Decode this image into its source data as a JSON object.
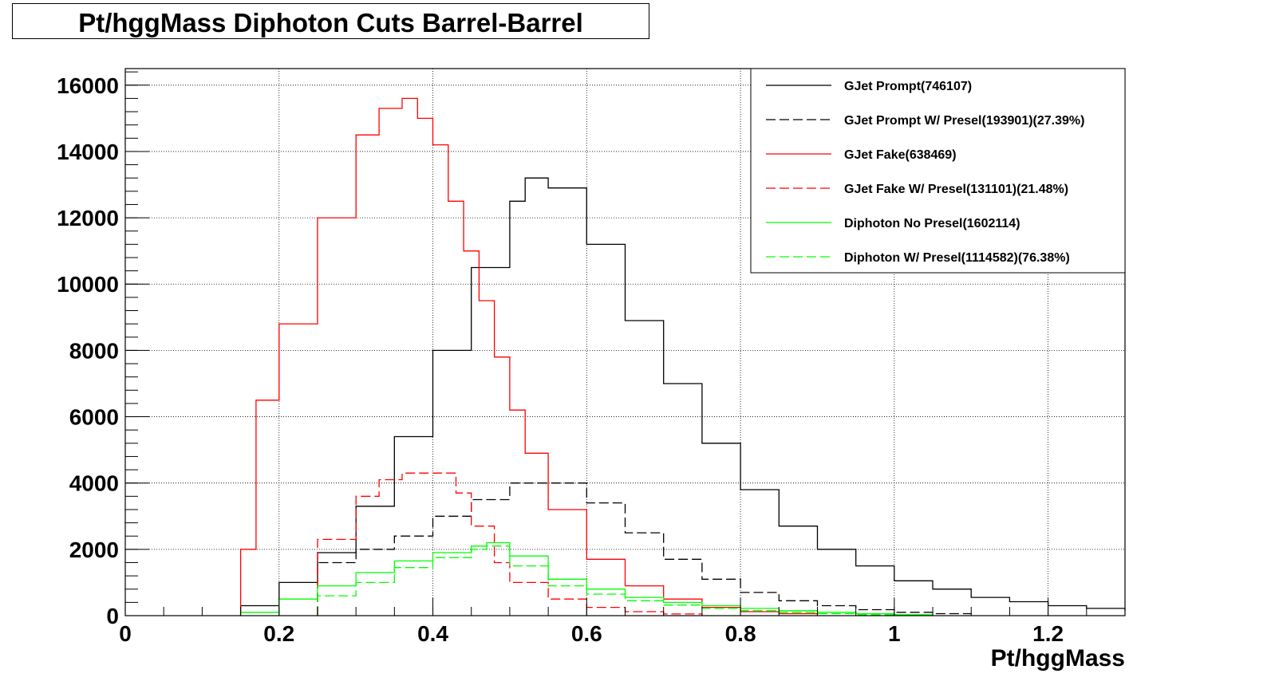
{
  "chart_data": {
    "type": "line",
    "title": "Pt/hggMass Diphoton Cuts Barrel-Barrel",
    "xlabel": "Pt/hggMass",
    "ylabel": "",
    "xlim": [
      0,
      1.3
    ],
    "ylim": [
      0,
      16500
    ],
    "xticks": [
      0,
      0.2,
      0.4,
      0.6,
      0.8,
      1,
      1.2
    ],
    "xtick_labels": [
      "0",
      "0.2",
      "0.4",
      "0.6",
      "0.8",
      "1",
      "1.2"
    ],
    "yticks": [
      0,
      2000,
      4000,
      6000,
      8000,
      10000,
      12000,
      14000,
      16000
    ],
    "ytick_labels": [
      "0",
      "2000",
      "4000",
      "6000",
      "8000",
      "10000",
      "12000",
      "14000",
      "16000"
    ],
    "grid": true,
    "legend_position": "top-right",
    "series": [
      {
        "name": "GJet Prompt(746107)",
        "color": "#000000",
        "dash": "solid",
        "x": [
          0.15,
          0.2,
          0.25,
          0.3,
          0.35,
          0.4,
          0.45,
          0.5,
          0.52,
          0.55,
          0.6,
          0.65,
          0.7,
          0.75,
          0.8,
          0.85,
          0.9,
          0.95,
          1.0,
          1.05,
          1.1,
          1.15,
          1.2,
          1.25,
          1.3
        ],
        "y": [
          300,
          1000,
          1900,
          3300,
          5400,
          8000,
          10500,
          12500,
          13200,
          12900,
          11200,
          8900,
          7000,
          5200,
          3800,
          2700,
          2000,
          1500,
          1050,
          800,
          550,
          420,
          300,
          220,
          150
        ]
      },
      {
        "name": "GJet Prompt W/ Presel(193901)(27.39%)",
        "color": "#000000",
        "dash": "dashed",
        "x": [
          0.25,
          0.3,
          0.35,
          0.4,
          0.45,
          0.5,
          0.55,
          0.6,
          0.65,
          0.7,
          0.75,
          0.8,
          0.85,
          0.9,
          0.95,
          1.0,
          1.05,
          1.1
        ],
        "y": [
          1600,
          2000,
          2400,
          3000,
          3500,
          4000,
          4000,
          3400,
          2500,
          1700,
          1100,
          700,
          450,
          300,
          180,
          100,
          60,
          30
        ]
      },
      {
        "name": "GJet Fake(638469)",
        "color": "#ff0000",
        "dash": "solid",
        "x": [
          0.15,
          0.17,
          0.2,
          0.25,
          0.3,
          0.33,
          0.36,
          0.38,
          0.4,
          0.42,
          0.44,
          0.46,
          0.48,
          0.5,
          0.52,
          0.55,
          0.6,
          0.65,
          0.7,
          0.75,
          0.8,
          0.85,
          0.9
        ],
        "y": [
          2000,
          6500,
          8800,
          12000,
          14500,
          15300,
          15600,
          15000,
          14200,
          12500,
          11000,
          9500,
          7800,
          6200,
          4900,
          3200,
          1700,
          900,
          500,
          250,
          120,
          60,
          20
        ]
      },
      {
        "name": "GJet Fake W/ Presel(131101)(21.48%)",
        "color": "#ff0000",
        "dash": "dashed",
        "x": [
          0.25,
          0.3,
          0.33,
          0.36,
          0.4,
          0.43,
          0.45,
          0.48,
          0.5,
          0.55,
          0.6,
          0.65,
          0.7,
          0.75
        ],
        "y": [
          2300,
          3600,
          4100,
          4300,
          4300,
          3700,
          2700,
          1600,
          1000,
          500,
          250,
          120,
          50,
          20
        ]
      },
      {
        "name": "Diphoton No Presel(1602114)",
        "color": "#00ff00",
        "dash": "solid",
        "x": [
          0.15,
          0.2,
          0.25,
          0.3,
          0.35,
          0.4,
          0.45,
          0.47,
          0.5,
          0.55,
          0.6,
          0.65,
          0.7,
          0.75,
          0.8,
          0.85,
          0.9,
          0.95,
          1.0,
          1.05
        ],
        "y": [
          100,
          500,
          900,
          1300,
          1650,
          1900,
          2100,
          2200,
          1800,
          1100,
          800,
          550,
          400,
          300,
          220,
          150,
          100,
          60,
          30,
          10
        ]
      },
      {
        "name": "Diphoton W/ Presel(1114582)(76.38%)",
        "color": "#00ff00",
        "dash": "dashed",
        "x": [
          0.25,
          0.3,
          0.35,
          0.4,
          0.45,
          0.47,
          0.5,
          0.55,
          0.6,
          0.65,
          0.7,
          0.75,
          0.8,
          0.85,
          0.9,
          0.95,
          1.0
        ],
        "y": [
          600,
          1000,
          1450,
          1750,
          2000,
          2100,
          1500,
          900,
          650,
          450,
          320,
          220,
          150,
          100,
          60,
          30,
          10
        ]
      }
    ]
  }
}
